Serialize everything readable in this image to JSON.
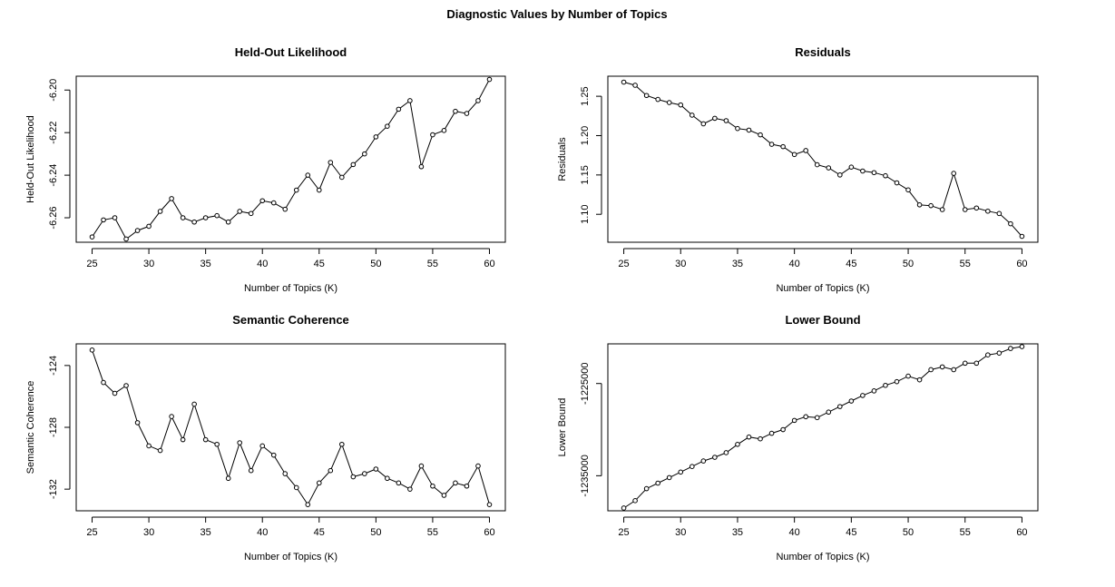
{
  "figure": {
    "title": "Diagnostic Values by Number of Topics"
  },
  "chart_data": [
    {
      "type": "line",
      "title": "Held-Out Likelihood",
      "xlabel": "Number of Topics (K)",
      "ylabel": "Held-Out Likelihood",
      "x": [
        25,
        26,
        27,
        28,
        29,
        30,
        31,
        32,
        33,
        34,
        35,
        36,
        37,
        38,
        39,
        40,
        41,
        42,
        43,
        44,
        45,
        46,
        47,
        48,
        49,
        50,
        51,
        52,
        53,
        54,
        55,
        56,
        57,
        58,
        59,
        60
      ],
      "series": [
        {
          "values": [
            -6.269,
            -6.261,
            -6.26,
            -6.27,
            -6.266,
            -6.264,
            -6.257,
            -6.251,
            -6.26,
            -6.262,
            -6.26,
            -6.259,
            -6.262,
            -6.257,
            -6.258,
            -6.252,
            -6.253,
            -6.256,
            -6.247,
            -6.24,
            -6.247,
            -6.234,
            -6.241,
            -6.235,
            -6.23,
            -6.222,
            -6.217,
            -6.209,
            -6.205,
            -6.236,
            -6.221,
            -6.219,
            -6.21,
            -6.211,
            -6.205,
            -6.195
          ]
        }
      ],
      "xlim": [
        23.6,
        61.4
      ],
      "ylim": [
        -6.2715,
        -6.1935
      ],
      "xticks": [
        25,
        30,
        35,
        40,
        45,
        50,
        55,
        60
      ],
      "yticks": [
        -6.26,
        -6.24,
        -6.22,
        -6.2
      ],
      "ytick_labels": [
        "-6.26",
        "-6.24",
        "-6.22",
        "-6.20"
      ],
      "grid": false,
      "markers": "open-circle"
    },
    {
      "type": "line",
      "title": "Residuals",
      "xlabel": "Number of Topics (K)",
      "ylabel": "Residuals",
      "x": [
        25,
        26,
        27,
        28,
        29,
        30,
        31,
        32,
        33,
        34,
        35,
        36,
        37,
        38,
        39,
        40,
        41,
        42,
        43,
        44,
        45,
        46,
        47,
        48,
        49,
        50,
        51,
        52,
        53,
        54,
        55,
        56,
        57,
        58,
        59,
        60
      ],
      "series": [
        {
          "values": [
            1.268,
            1.264,
            1.251,
            1.246,
            1.242,
            1.239,
            1.226,
            1.215,
            1.222,
            1.219,
            1.209,
            1.207,
            1.201,
            1.189,
            1.186,
            1.176,
            1.181,
            1.163,
            1.159,
            1.15,
            1.16,
            1.155,
            1.153,
            1.149,
            1.14,
            1.131,
            1.112,
            1.111,
            1.106,
            1.152,
            1.106,
            1.108,
            1.104,
            1.101,
            1.088,
            1.072
          ]
        }
      ],
      "xlim": [
        23.6,
        61.4
      ],
      "ylim": [
        1.0645,
        1.2755
      ],
      "xticks": [
        25,
        30,
        35,
        40,
        45,
        50,
        55,
        60
      ],
      "yticks": [
        1.1,
        1.15,
        1.2,
        1.25
      ],
      "ytick_labels": [
        "1.10",
        "1.15",
        "1.20",
        "1.25"
      ],
      "grid": false,
      "markers": "open-circle"
    },
    {
      "type": "line",
      "title": "Semantic Coherence",
      "xlabel": "Number of Topics (K)",
      "ylabel": "Semantic Coherence",
      "x": [
        25,
        26,
        27,
        28,
        29,
        30,
        31,
        32,
        33,
        34,
        35,
        36,
        37,
        38,
        39,
        40,
        41,
        42,
        43,
        44,
        45,
        46,
        47,
        48,
        49,
        50,
        51,
        52,
        53,
        54,
        55,
        56,
        57,
        58,
        59,
        60
      ],
      "series": [
        {
          "values": [
            -123.0,
            -125.1,
            -125.8,
            -125.3,
            -127.7,
            -129.2,
            -129.5,
            -127.3,
            -128.8,
            -126.5,
            -128.8,
            -129.1,
            -131.3,
            -129.0,
            -130.8,
            -129.2,
            -129.8,
            -131.0,
            -131.9,
            -133.0,
            -131.6,
            -130.8,
            -129.1,
            -131.2,
            -131.0,
            -130.7,
            -131.3,
            -131.6,
            -132.0,
            -130.5,
            -131.8,
            -132.4,
            -131.6,
            -131.8,
            -130.5,
            -133.0
          ]
        }
      ],
      "xlim": [
        23.6,
        61.4
      ],
      "ylim": [
        -133.4,
        -122.6
      ],
      "xticks": [
        25,
        30,
        35,
        40,
        45,
        50,
        55,
        60
      ],
      "yticks": [
        -132,
        -128,
        -124
      ],
      "ytick_labels": [
        "-132",
        "-128",
        "-124"
      ],
      "grid": false,
      "markers": "open-circle"
    },
    {
      "type": "line",
      "title": "Lower Bound",
      "xlabel": "Number of Topics (K)",
      "ylabel": "Lower Bound",
      "x": [
        25,
        26,
        27,
        28,
        29,
        30,
        31,
        32,
        33,
        34,
        35,
        36,
        37,
        38,
        39,
        40,
        41,
        42,
        43,
        44,
        45,
        46,
        47,
        48,
        49,
        50,
        51,
        52,
        53,
        54,
        55,
        56,
        57,
        58,
        59,
        60
      ],
      "series": [
        {
          "values": [
            -1238500,
            -1237700,
            -1236400,
            -1235800,
            -1235200,
            -1234600,
            -1234000,
            -1233400,
            -1233000,
            -1232500,
            -1231600,
            -1230800,
            -1231000,
            -1230400,
            -1230000,
            -1229000,
            -1228600,
            -1228700,
            -1228100,
            -1227500,
            -1226900,
            -1226300,
            -1225800,
            -1225200,
            -1224800,
            -1224200,
            -1224600,
            -1223500,
            -1223200,
            -1223500,
            -1222800,
            -1222800,
            -1221900,
            -1221700,
            -1221200,
            -1221000
          ]
        }
      ],
      "xlim": [
        23.6,
        61.4
      ],
      "ylim": [
        -1238800,
        -1220700
      ],
      "xticks": [
        25,
        30,
        35,
        40,
        45,
        50,
        55,
        60
      ],
      "yticks": [
        -1235000,
        -1225000
      ],
      "ytick_labels": [
        "-1235000",
        "-1225000"
      ],
      "grid": false,
      "markers": "open-circle"
    }
  ]
}
